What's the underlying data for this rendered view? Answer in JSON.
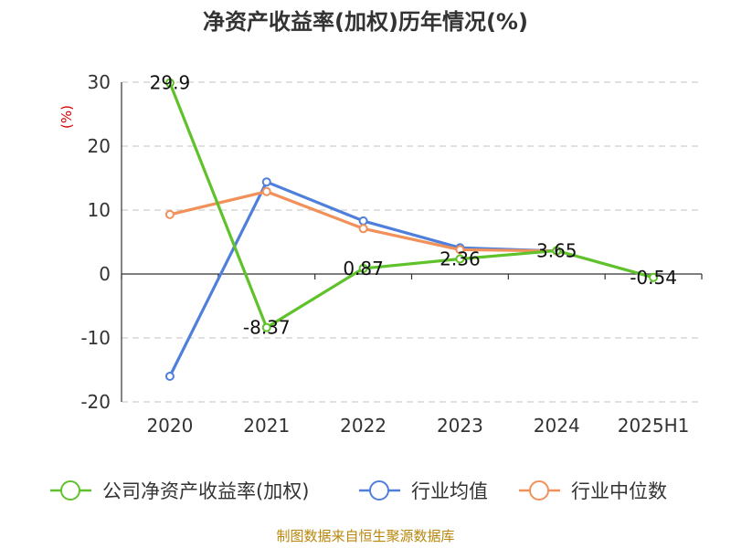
{
  "chart_data": {
    "type": "line",
    "title": "净资产收益率(加权)历年情况(%)",
    "unit_label": "(%)",
    "categories": [
      "2020",
      "2021",
      "2022",
      "2023",
      "2024",
      "2025H1"
    ],
    "ylim": [
      -20,
      30
    ],
    "yticks": [
      30,
      20,
      10,
      0,
      -10,
      -20
    ],
    "ytick_labels": [
      "30",
      "20",
      "10",
      "0",
      "-10",
      "-20"
    ],
    "grid": true,
    "legend_position": "bottom",
    "series": [
      {
        "name": "公司净资产收益率(加权)",
        "color": "#5fc22a",
        "values": [
          29.9,
          -8.37,
          0.87,
          2.36,
          3.65,
          -0.54
        ],
        "labels": [
          "29.9",
          "-8.37",
          "0.87",
          "2.36",
          "3.65",
          "-0.54"
        ]
      },
      {
        "name": "行业均值",
        "color": "#4f7fdb",
        "values": [
          -16.0,
          14.4,
          8.3,
          4.1,
          3.6,
          null
        ]
      },
      {
        "name": "行业中位数",
        "color": "#f2905a",
        "values": [
          9.3,
          12.9,
          7.1,
          3.8,
          3.6,
          null
        ]
      }
    ]
  },
  "source_note": "制图数据来自恒生聚源数据库"
}
